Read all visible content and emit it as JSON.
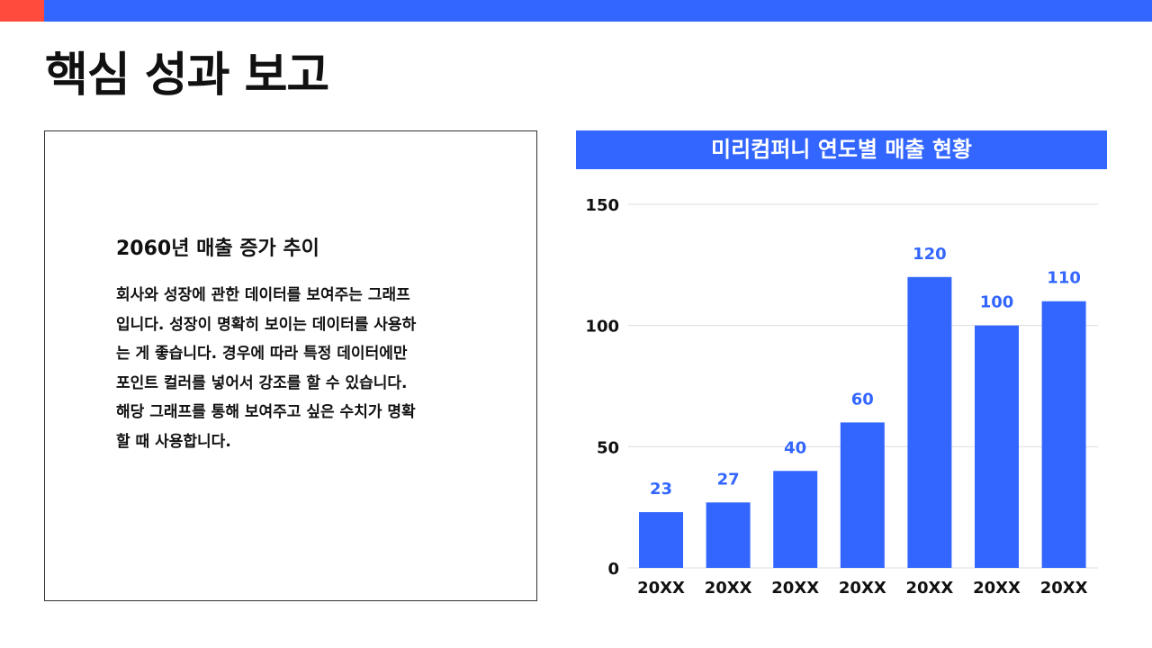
{
  "colors": {
    "accent": "#3366ff",
    "marker": "#ff4b3e",
    "grid": "#dddddd",
    "text": "#111111"
  },
  "page": {
    "title": "핵심 성과 보고"
  },
  "text_box": {
    "heading": "2060년 매출 증가 추이",
    "body": "회사와 성장에 관한 데이터를 보여주는 그래프\n입니다. 성장이 명확히 보이는 데이터를 사용하\n는 게 좋습니다. 경우에 따라 특정 데이터에만\n포인트 컬러를 넣어서 강조를 할 수 있습니다.\n해당 그래프를 통해 보여주고 싶은 수치가 명확\n할 때 사용합니다."
  },
  "chart_data": {
    "type": "bar",
    "title": "미리컴퍼니 연도별 매출 현황",
    "categories": [
      "20XX",
      "20XX",
      "20XX",
      "20XX",
      "20XX",
      "20XX",
      "20XX"
    ],
    "values": [
      23,
      27,
      40,
      60,
      120,
      100,
      110
    ],
    "ylim": [
      0,
      150
    ],
    "yticks": [
      0,
      50,
      100,
      150
    ],
    "grid": true,
    "data_labels": true,
    "bar_color": "#3366ff"
  }
}
